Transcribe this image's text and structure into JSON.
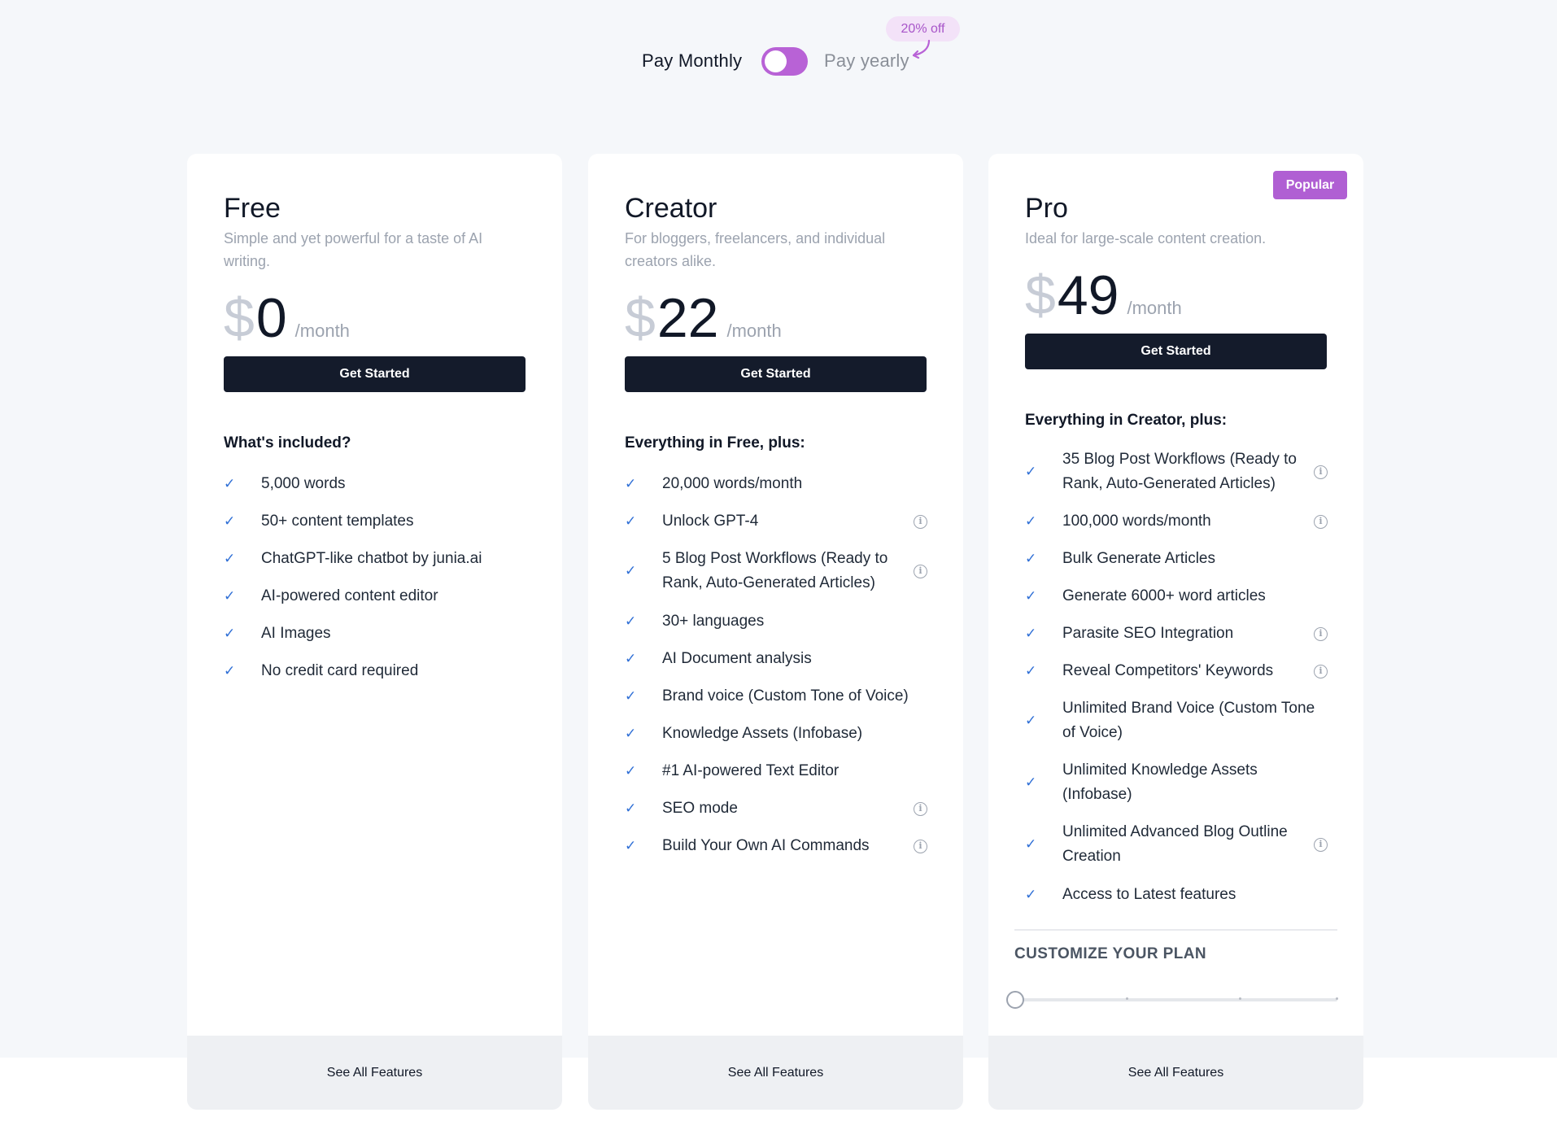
{
  "billing": {
    "monthly_label": "Pay Monthly",
    "yearly_label": "Pay yearly",
    "discount": "20% off",
    "toggle_state": "monthly",
    "accent_color": "#b862d6"
  },
  "plans": [
    {
      "name": "Free",
      "description": "Simple and yet powerful for a taste of AI writing.",
      "currency": "$",
      "price": "0",
      "period": "/month",
      "cta": "Get Started",
      "features_heading": "What's included?",
      "features": [
        {
          "label": "5,000 words",
          "info": false
        },
        {
          "label": "50+ content templates",
          "info": false
        },
        {
          "label": "ChatGPT-like chatbot by junia.ai",
          "info": false
        },
        {
          "label": "AI-powered content editor",
          "info": false
        },
        {
          "label": "AI Images",
          "info": false
        },
        {
          "label": "No credit card required",
          "info": false
        }
      ],
      "footer": "See All Features"
    },
    {
      "name": "Creator",
      "description": "For bloggers, freelancers, and individual creators alike.",
      "currency": "$",
      "price": "22",
      "period": "/month",
      "cta": "Get Started",
      "features_heading": "Everything in Free, plus:",
      "features": [
        {
          "label": "20,000 words/month",
          "info": false
        },
        {
          "label": "Unlock GPT-4",
          "info": true
        },
        {
          "label": "5 Blog Post Workflows (Ready to Rank, Auto-Generated Articles)",
          "info": true
        },
        {
          "label": "30+ languages",
          "info": false
        },
        {
          "label": "AI Document analysis",
          "info": false
        },
        {
          "label": "Brand voice (Custom Tone of Voice)",
          "info": false
        },
        {
          "label": "Knowledge Assets (Infobase)",
          "info": false
        },
        {
          "label": "#1 AI-powered Text Editor",
          "info": false
        },
        {
          "label": "SEO mode",
          "info": true
        },
        {
          "label": "Build Your Own AI Commands",
          "info": true
        }
      ],
      "footer": "See All Features"
    },
    {
      "name": "Pro",
      "badge": "Popular",
      "description": "Ideal for large-scale content creation.",
      "currency": "$",
      "price": "49",
      "period": "/month",
      "cta": "Get Started",
      "features_heading": "Everything in Creator, plus:",
      "features": [
        {
          "label": "35 Blog Post Workflows (Ready to Rank, Auto-Generated Articles)",
          "info": true
        },
        {
          "label": "100,000 words/month",
          "info": true
        },
        {
          "label": "Bulk Generate Articles",
          "info": false
        },
        {
          "label": "Generate 6000+ word articles",
          "info": false
        },
        {
          "label": "Parasite SEO Integration",
          "info": true
        },
        {
          "label": "Reveal Competitors' Keywords",
          "info": true
        },
        {
          "label": "Unlimited Brand Voice (Custom Tone of Voice)",
          "info": false
        },
        {
          "label": "Unlimited Knowledge Assets (Infobase)",
          "info": false
        },
        {
          "label": "Unlimited Advanced Blog Outline Creation",
          "info": true
        },
        {
          "label": "Access to Latest features",
          "info": false
        }
      ],
      "customize_title": "CUSTOMIZE YOUR PLAN",
      "slider_value": 0,
      "footer": "See All Features"
    }
  ],
  "icons": {
    "check": "check-icon",
    "info": "info-icon"
  }
}
